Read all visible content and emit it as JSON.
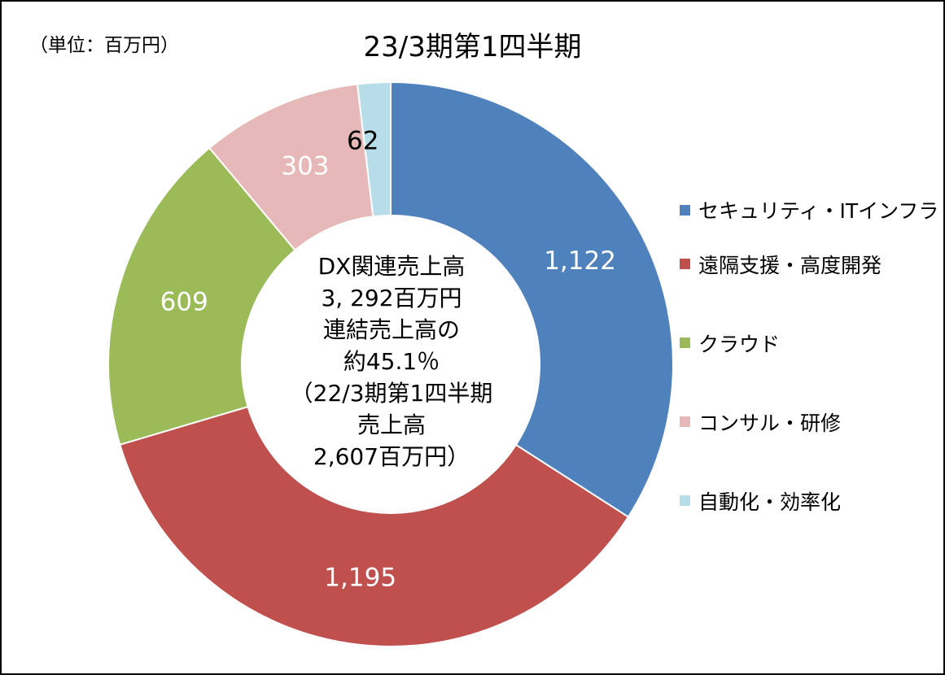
{
  "header": {
    "unit_label": "（単位：百万円）",
    "title": "23/3期第1四半期"
  },
  "center": {
    "lines": [
      "DX関連売上高",
      "3, 292百万円",
      "連結売上高の",
      "約45.1％",
      "（22/3期第1四半期",
      "売上高",
      "2,607百万円）"
    ]
  },
  "chart_data": {
    "type": "pie",
    "donut": true,
    "title": "23/3期第1四半期",
    "categories": [
      "セキュリティ・ITインフラ",
      "遠隔支援・高度開発",
      "クラウド",
      "コンサル・研修",
      "自動化・効率化"
    ],
    "values": [
      1122,
      1195,
      609,
      303,
      62
    ],
    "labels": [
      "1,122",
      "1,195",
      "609",
      "303",
      "62"
    ],
    "colors": [
      "#4F81BD",
      "#C0504D",
      "#9BBB59",
      "#E6B9B8",
      "#B7DEE8"
    ],
    "label_colors": [
      "#ffffff",
      "#ffffff",
      "#ffffff",
      "#ffffff",
      "#000000"
    ],
    "legend_position": "right"
  }
}
